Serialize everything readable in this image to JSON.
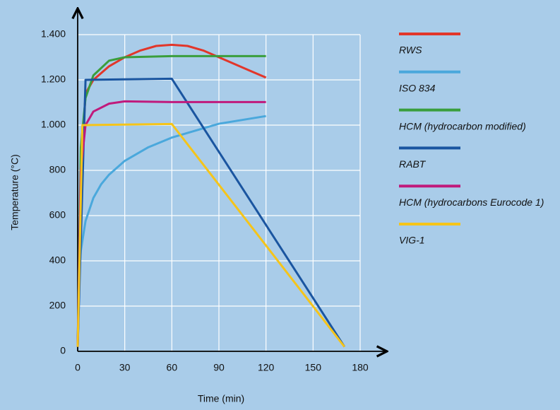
{
  "chart_data": {
    "type": "line",
    "x_label": "Time (min)",
    "y_label": "Temperature (°C)",
    "xlim": [
      0,
      180
    ],
    "ylim": [
      0,
      1400
    ],
    "xticks": [
      0,
      30,
      60,
      90,
      120,
      150,
      180
    ],
    "yticks": [
      0,
      200,
      400,
      600,
      800,
      {
        "value": 1000,
        "label": "1.000"
      },
      {
        "value": 1200,
        "label": "1.200"
      },
      {
        "value": 1400,
        "label": "1.400"
      }
    ],
    "grid": true,
    "series": [
      {
        "name": "RWS",
        "color": "#e2362a",
        "x": [
          0,
          3,
          5,
          10,
          20,
          30,
          40,
          50,
          60,
          70,
          80,
          90,
          100,
          110,
          120
        ],
        "values": [
          20,
          890,
          1140,
          1200,
          1260,
          1300,
          1330,
          1350,
          1355,
          1350,
          1330,
          1300,
          1270,
          1240,
          1210
        ]
      },
      {
        "name": "ISO 834",
        "color": "#4aa8dc",
        "x": [
          0,
          1,
          2,
          5,
          10,
          15,
          20,
          30,
          45,
          60,
          90,
          120
        ],
        "values": [
          20,
          349,
          445,
          576,
          678,
          739,
          781,
          842,
          902,
          945,
          1006,
          1040
        ]
      },
      {
        "name": "HCM (hydrocarbon modified)",
        "color": "#3a9e3c",
        "x": [
          0,
          2,
          5,
          10,
          20,
          30,
          60,
          120
        ],
        "values": [
          20,
          900,
          1120,
          1220,
          1285,
          1300,
          1305,
          1305
        ]
      },
      {
        "name": "RABT",
        "color": "#1a55a0",
        "x": [
          0,
          5,
          60,
          170
        ],
        "values": [
          20,
          1200,
          1205,
          20
        ]
      },
      {
        "name": "HCM (hydrocarbons Eurocode 1)",
        "color": "#c01a7c",
        "x": [
          0,
          2,
          5,
          10,
          20,
          30,
          60,
          120
        ],
        "values": [
          20,
          800,
          1000,
          1060,
          1095,
          1105,
          1102,
          1102
        ]
      },
      {
        "name": "VIG-1",
        "color": "#f5c41a",
        "x": [
          0,
          3,
          60,
          170
        ],
        "values": [
          20,
          1000,
          1005,
          20
        ]
      }
    ]
  }
}
